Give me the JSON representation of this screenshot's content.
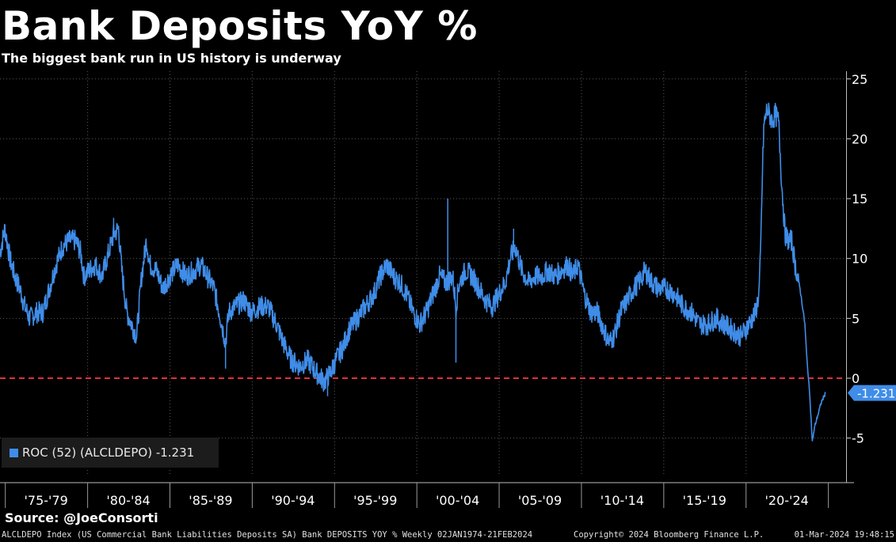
{
  "chart_data": {
    "type": "line",
    "title": "Bank Deposits YoY %",
    "subtitle": "The biggest bank run in US history is underway",
    "x_categories": [
      "'75-'79",
      "'80-'84",
      "'85-'89",
      "'90-'94",
      "'95-'99",
      "'00-'04",
      "'05-'09",
      "'10-'14",
      "'15-'19",
      "'20-'24"
    ],
    "x_range": [
      "1974-01",
      "2024-02"
    ],
    "y_ticks": [
      "25",
      "20",
      "15",
      "10",
      "5",
      "0",
      "-5"
    ],
    "ylim": [
      -8,
      25
    ],
    "grid": true,
    "reference_line": 0,
    "reference_color": "#e0303c",
    "series": [
      {
        "name": "ROC (52) (ALCLDEPO)",
        "color": "#3f8de8",
        "last_value": "-1.231",
        "points": [
          [
            1974.0,
            10.5
          ],
          [
            1974.3,
            12.5
          ],
          [
            1974.6,
            10.0
          ],
          [
            1974.9,
            8.5
          ],
          [
            1975.2,
            7.5
          ],
          [
            1975.5,
            6.0
          ],
          [
            1975.8,
            5.0
          ],
          [
            1976.2,
            5.5
          ],
          [
            1976.6,
            5.5
          ],
          [
            1977.0,
            7.5
          ],
          [
            1977.4,
            9.5
          ],
          [
            1977.8,
            11.0
          ],
          [
            1978.2,
            11.5
          ],
          [
            1978.6,
            11.5
          ],
          [
            1978.9,
            10.5
          ],
          [
            1979.1,
            8.5
          ],
          [
            1979.4,
            9.0
          ],
          [
            1979.8,
            9.5
          ],
          [
            1980.2,
            8.5
          ],
          [
            1980.6,
            10.5
          ],
          [
            1980.9,
            12.0
          ],
          [
            1981.2,
            12.5
          ],
          [
            1981.4,
            9.0
          ],
          [
            1981.7,
            5.5
          ],
          [
            1982.0,
            4.5
          ],
          [
            1982.3,
            3.5
          ],
          [
            1982.6,
            8.5
          ],
          [
            1982.9,
            11.5
          ],
          [
            1983.1,
            9.5
          ],
          [
            1983.5,
            9.0
          ],
          [
            1983.9,
            7.5
          ],
          [
            1984.3,
            8.5
          ],
          [
            1984.8,
            9.5
          ],
          [
            1985.3,
            8.5
          ],
          [
            1985.8,
            9.0
          ],
          [
            1986.2,
            9.5
          ],
          [
            1986.6,
            8.5
          ],
          [
            1987.0,
            7.5
          ],
          [
            1987.4,
            5.0
          ],
          [
            1987.7,
            3.0
          ],
          [
            1987.9,
            5.5
          ],
          [
            1988.3,
            6.0
          ],
          [
            1988.8,
            6.5
          ],
          [
            1989.3,
            5.5
          ],
          [
            1989.8,
            6.0
          ],
          [
            1990.3,
            6.0
          ],
          [
            1990.8,
            4.5
          ],
          [
            1991.2,
            3.0
          ],
          [
            1991.7,
            1.5
          ],
          [
            1992.2,
            1.0
          ],
          [
            1992.7,
            1.5
          ],
          [
            1993.2,
            0.5
          ],
          [
            1993.7,
            -0.3
          ],
          [
            1994.1,
            0.5
          ],
          [
            1994.4,
            1.5
          ],
          [
            1994.8,
            2.5
          ],
          [
            1995.2,
            4.0
          ],
          [
            1995.7,
            5.0
          ],
          [
            1996.2,
            6.0
          ],
          [
            1996.7,
            7.0
          ],
          [
            1997.1,
            8.5
          ],
          [
            1997.5,
            9.5
          ],
          [
            1997.9,
            8.5
          ],
          [
            1998.3,
            8.0
          ],
          [
            1998.7,
            7.0
          ],
          [
            1999.1,
            5.5
          ],
          [
            1999.5,
            4.5
          ],
          [
            1999.9,
            5.5
          ],
          [
            2000.3,
            7.0
          ],
          [
            2000.7,
            8.5
          ],
          [
            2001.1,
            8.0
          ],
          [
            2001.5,
            8.5
          ],
          [
            2001.7,
            6.0
          ],
          [
            2001.9,
            8.0
          ],
          [
            2002.3,
            9.0
          ],
          [
            2002.7,
            8.5
          ],
          [
            2003.1,
            7.5
          ],
          [
            2003.5,
            6.5
          ],
          [
            2003.9,
            6.0
          ],
          [
            2004.3,
            7.0
          ],
          [
            2004.7,
            8.0
          ],
          [
            2005.0,
            10.0
          ],
          [
            2005.3,
            11.0
          ],
          [
            2005.7,
            9.0
          ],
          [
            2006.1,
            8.0
          ],
          [
            2006.5,
            8.5
          ],
          [
            2006.9,
            8.5
          ],
          [
            2007.3,
            9.0
          ],
          [
            2007.7,
            8.5
          ],
          [
            2008.1,
            9.0
          ],
          [
            2008.5,
            9.5
          ],
          [
            2008.8,
            8.5
          ],
          [
            2009.1,
            9.5
          ],
          [
            2009.5,
            7.0
          ],
          [
            2009.9,
            5.5
          ],
          [
            2010.3,
            5.5
          ],
          [
            2010.7,
            4.0
          ],
          [
            2011.0,
            3.0
          ],
          [
            2011.3,
            3.5
          ],
          [
            2011.7,
            5.5
          ],
          [
            2012.1,
            6.5
          ],
          [
            2012.5,
            7.5
          ],
          [
            2012.8,
            8.0
          ],
          [
            2013.2,
            9.0
          ],
          [
            2013.6,
            8.0
          ],
          [
            2014.0,
            7.5
          ],
          [
            2014.5,
            7.5
          ],
          [
            2015.0,
            7.0
          ],
          [
            2015.5,
            6.0
          ],
          [
            2016.0,
            5.5
          ],
          [
            2016.5,
            4.5
          ],
          [
            2017.0,
            4.5
          ],
          [
            2017.5,
            5.0
          ],
          [
            2018.0,
            4.5
          ],
          [
            2018.5,
            4.0
          ],
          [
            2019.0,
            3.5
          ],
          [
            2019.5,
            4.5
          ],
          [
            2019.9,
            5.5
          ],
          [
            2020.1,
            7.0
          ],
          [
            2020.2,
            10.0
          ],
          [
            2020.3,
            16.0
          ],
          [
            2020.4,
            21.0
          ],
          [
            2020.6,
            22.5
          ],
          [
            2020.9,
            21.5
          ],
          [
            2021.1,
            22.0
          ],
          [
            2021.3,
            21.5
          ],
          [
            2021.5,
            16.0
          ],
          [
            2021.7,
            12.0
          ],
          [
            2021.9,
            11.5
          ],
          [
            2022.1,
            11.5
          ],
          [
            2022.3,
            9.5
          ],
          [
            2022.6,
            7.5
          ],
          [
            2022.9,
            4.5
          ],
          [
            2023.0,
            2.0
          ],
          [
            2023.2,
            -1.5
          ],
          [
            2023.35,
            -5.3
          ],
          [
            2023.5,
            -4.0
          ],
          [
            2023.7,
            -3.0
          ],
          [
            2023.9,
            -2.0
          ],
          [
            2024.15,
            -1.231
          ]
        ]
      }
    ]
  },
  "legend": {
    "label": "ROC (52) (ALCLDEPO) -1.231"
  },
  "last_value_label": "-1.231",
  "source": "Source: @JoeConsorti",
  "footer": {
    "description": "ALCLDEPO Index (US Commercial Bank Liabilities Deposits SA) Bank DEPOSITS YOY %  Weekly 02JAN1974-21FEB2024",
    "copyright": "Copyright© 2024 Bloomberg Finance L.P.",
    "timestamp": "01-Mar-2024 19:48:15"
  }
}
